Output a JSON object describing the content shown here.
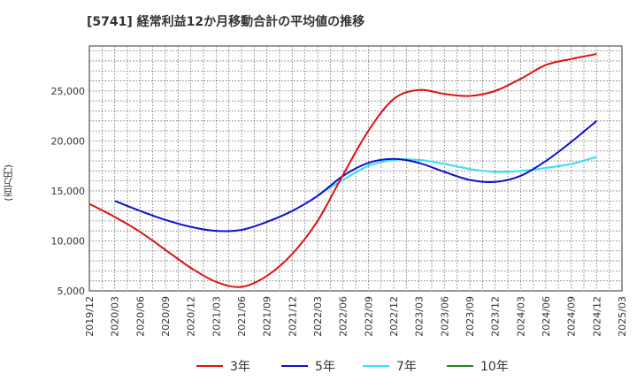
{
  "chart_data": {
    "type": "line",
    "title": "[5741]  経常利益12か月移動合計の平均値の推移",
    "ylabel": "(百万円)",
    "xlabel": "",
    "ylim": [
      5000,
      29500
    ],
    "y_ticks": [
      5000,
      10000,
      15000,
      20000,
      25000
    ],
    "y_tick_labels": [
      "5,000",
      "10,000",
      "15,000",
      "20,000",
      "25,000"
    ],
    "x_ticks": [
      "2019/12",
      "2020/03",
      "2020/06",
      "2020/09",
      "2020/12",
      "2021/03",
      "2021/06",
      "2021/09",
      "2021/12",
      "2022/03",
      "2022/06",
      "2022/09",
      "2022/12",
      "2023/03",
      "2023/06",
      "2023/09",
      "2023/12",
      "2024/03",
      "2024/06",
      "2024/09",
      "2024/12",
      "2025/03"
    ],
    "grid": true,
    "legend_position": "bottom",
    "series": [
      {
        "name": "3年",
        "color": "#dd1111",
        "x": [
          "2019/12",
          "2020/03",
          "2020/06",
          "2020/09",
          "2020/12",
          "2021/03",
          "2021/06",
          "2021/09",
          "2021/12",
          "2022/03",
          "2022/06",
          "2022/09",
          "2022/12",
          "2023/03",
          "2023/06",
          "2023/09",
          "2023/12",
          "2024/03",
          "2024/06",
          "2024/09",
          "2024/12"
        ],
        "values": [
          13700,
          12400,
          10900,
          9100,
          7300,
          5900,
          5400,
          6500,
          8700,
          12000,
          16600,
          21000,
          24200,
          25100,
          24700,
          24500,
          25000,
          26200,
          27600,
          28200,
          28700
        ]
      },
      {
        "name": "5年",
        "color": "#1111cc",
        "x": [
          "2020/03",
          "2020/06",
          "2020/09",
          "2020/12",
          "2021/03",
          "2021/06",
          "2021/09",
          "2021/12",
          "2022/03",
          "2022/06",
          "2022/09",
          "2022/12",
          "2023/03",
          "2023/06",
          "2023/09",
          "2023/12",
          "2024/03",
          "2024/06",
          "2024/09",
          "2024/12"
        ],
        "values": [
          14000,
          13000,
          12100,
          11400,
          11000,
          11100,
          11900,
          13000,
          14500,
          16500,
          17800,
          18200,
          17800,
          16900,
          16100,
          15900,
          16500,
          18000,
          19900,
          22000
        ]
      },
      {
        "name": "7年",
        "color": "#33e0f0",
        "x": [
          "2022/03",
          "2022/06",
          "2022/09",
          "2022/12",
          "2023/03",
          "2023/06",
          "2023/09",
          "2023/12",
          "2024/03",
          "2024/06",
          "2024/09",
          "2024/12"
        ],
        "values": [
          14600,
          16100,
          17500,
          18100,
          18100,
          17700,
          17200,
          16900,
          17000,
          17300,
          17700,
          18400
        ]
      },
      {
        "name": "10年",
        "color": "#228822",
        "x": [],
        "values": []
      }
    ]
  }
}
